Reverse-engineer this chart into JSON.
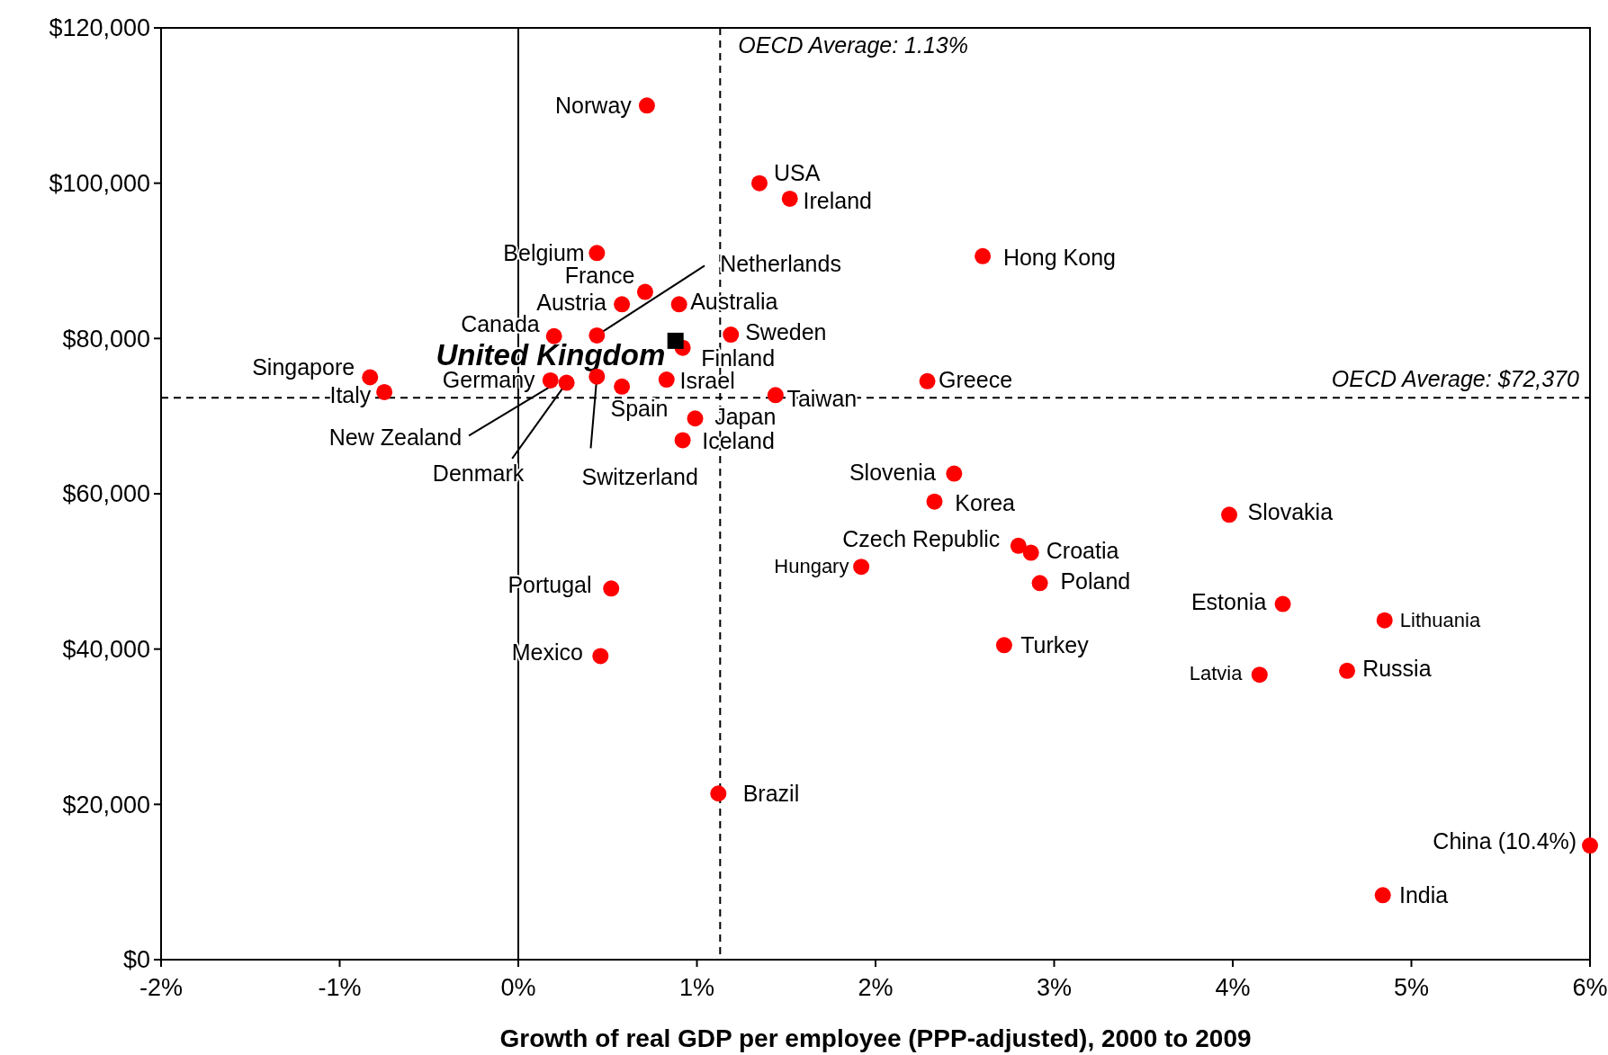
{
  "chart_data": {
    "type": "scatter",
    "xlabel": "Growth of real GDP per employee (PPP-adjusted), 2000 to 2009",
    "xlim": [
      -2,
      6
    ],
    "xticks": [
      {
        "value": -2,
        "label": "-2%"
      },
      {
        "value": -1,
        "label": "-1%"
      },
      {
        "value": 0,
        "label": "0%"
      },
      {
        "value": 1,
        "label": "1%"
      },
      {
        "value": 2,
        "label": "2%"
      },
      {
        "value": 3,
        "label": "3%"
      },
      {
        "value": 4,
        "label": "4%"
      },
      {
        "value": 5,
        "label": "5%"
      },
      {
        "value": 6,
        "label": "6%"
      }
    ],
    "ylim": [
      0,
      120000
    ],
    "yticks": [
      {
        "value": 0,
        "label": "$0"
      },
      {
        "value": 20000,
        "label": "$20,000"
      },
      {
        "value": 40000,
        "label": "$40,000"
      },
      {
        "value": 60000,
        "label": "$60,000"
      },
      {
        "value": 80000,
        "label": "$80,000"
      },
      {
        "value": 100000,
        "label": "$100,000"
      },
      {
        "value": 120000,
        "label": "$120,000"
      }
    ],
    "grid": false,
    "series": [
      {
        "color": "#ff0000",
        "marker": "circle",
        "x": [
          0.72,
          1.35,
          1.52,
          2.6,
          0.44,
          0.71,
          0.58,
          0.9,
          0.2,
          0.44,
          0.92,
          1.19,
          -0.83,
          -0.75,
          0.18,
          0.27,
          0.44,
          0.58,
          0.83,
          1.44,
          2.29,
          0.99,
          0.92,
          2.44,
          2.33,
          3.98,
          2.8,
          2.87,
          1.92,
          2.92,
          0.52,
          4.28,
          4.85,
          0.46,
          2.72,
          4.15,
          4.64,
          1.12,
          6.0,
          4.84
        ],
        "values": [
          110000,
          100000,
          98000,
          90600,
          91000,
          86000,
          84400,
          84400,
          80300,
          80400,
          78800,
          80500,
          75000,
          73100,
          74600,
          74300,
          75100,
          73800,
          74700,
          72700,
          74500,
          69700,
          66900,
          62600,
          59000,
          57300,
          53300,
          52400,
          50600,
          48500,
          47800,
          45800,
          43700,
          39100,
          40500,
          36700,
          37200,
          21400,
          14700,
          8300
        ]
      },
      {
        "color": "#000000",
        "marker": "square",
        "x": [
          0.88
        ],
        "values": [
          79700
        ]
      }
    ],
    "ref_lines": [
      {
        "axis": "x",
        "value": 0,
        "label": null,
        "color": "#000000",
        "line_style": "solid"
      },
      {
        "axis": "x",
        "value": 1.13,
        "label": "OECD Average: 1.13%",
        "color": "#000000",
        "line_style": "dashed"
      },
      {
        "axis": "y",
        "value": 72370,
        "label": "OECD Average: $72,370",
        "color": "#000000",
        "line_style": "dashed"
      }
    ],
    "annotations": [
      {
        "text": "Norway",
        "x": 0.72,
        "y": 110000
      },
      {
        "text": "USA",
        "x": 1.35,
        "y": 100000
      },
      {
        "text": "Ireland",
        "x": 1.52,
        "y": 98000
      },
      {
        "text": "Hong Kong",
        "x": 2.6,
        "y": 90600
      },
      {
        "text": "Belgium",
        "x": 0.44,
        "y": 91000
      },
      {
        "text": "France",
        "x": 0.71,
        "y": 86000
      },
      {
        "text": "Austria",
        "x": 0.58,
        "y": 84400
      },
      {
        "text": "Australia",
        "x": 0.9,
        "y": 84400
      },
      {
        "text": "Canada",
        "x": 0.2,
        "y": 80300
      },
      {
        "text": "Netherlands",
        "x": 0.44,
        "y": 80400
      },
      {
        "text": "United Kingdom",
        "x": 0.88,
        "y": 79700
      },
      {
        "text": "Finland",
        "x": 0.92,
        "y": 78800
      },
      {
        "text": "Sweden",
        "x": 1.19,
        "y": 80500
      },
      {
        "text": "Singapore",
        "x": -0.83,
        "y": 75000
      },
      {
        "text": "Italy",
        "x": -0.75,
        "y": 73100
      },
      {
        "text": "Germany",
        "x": 0.18,
        "y": 74600
      },
      {
        "text": "New Zealand",
        "x": 0.2,
        "y": 74100
      },
      {
        "text": "Denmark",
        "x": 0.27,
        "y": 74300
      },
      {
        "text": "Switzerland",
        "x": 0.44,
        "y": 75100
      },
      {
        "text": "Spain",
        "x": 0.58,
        "y": 73800
      },
      {
        "text": "Israel",
        "x": 0.83,
        "y": 74700
      },
      {
        "text": "Taiwan",
        "x": 1.44,
        "y": 72700
      },
      {
        "text": "Greece",
        "x": 2.29,
        "y": 74500
      },
      {
        "text": "Japan",
        "x": 0.99,
        "y": 69700
      },
      {
        "text": "Iceland",
        "x": 0.92,
        "y": 66900
      },
      {
        "text": "Slovenia",
        "x": 2.44,
        "y": 62600
      },
      {
        "text": "Korea",
        "x": 2.33,
        "y": 59000
      },
      {
        "text": "Slovakia",
        "x": 3.98,
        "y": 57300
      },
      {
        "text": "Czech Republic",
        "x": 2.8,
        "y": 53300
      },
      {
        "text": "Croatia",
        "x": 2.87,
        "y": 52400
      },
      {
        "text": "Hungary",
        "x": 1.92,
        "y": 50600
      },
      {
        "text": "Poland",
        "x": 2.92,
        "y": 48500
      },
      {
        "text": "Portugal",
        "x": 0.52,
        "y": 47800
      },
      {
        "text": "Estonia",
        "x": 4.28,
        "y": 45800
      },
      {
        "text": "Lithuania",
        "x": 4.85,
        "y": 43700
      },
      {
        "text": "Mexico",
        "x": 0.46,
        "y": 39100
      },
      {
        "text": "Turkey",
        "x": 2.72,
        "y": 40500
      },
      {
        "text": "Latvia",
        "x": 4.15,
        "y": 36700
      },
      {
        "text": "Russia",
        "x": 4.64,
        "y": 37200
      },
      {
        "text": "Brazil",
        "x": 1.12,
        "y": 21400
      },
      {
        "text": "China (10.4%)",
        "x": 6.0,
        "y": 14700
      },
      {
        "text": "India",
        "x": 4.84,
        "y": 8300
      }
    ]
  }
}
